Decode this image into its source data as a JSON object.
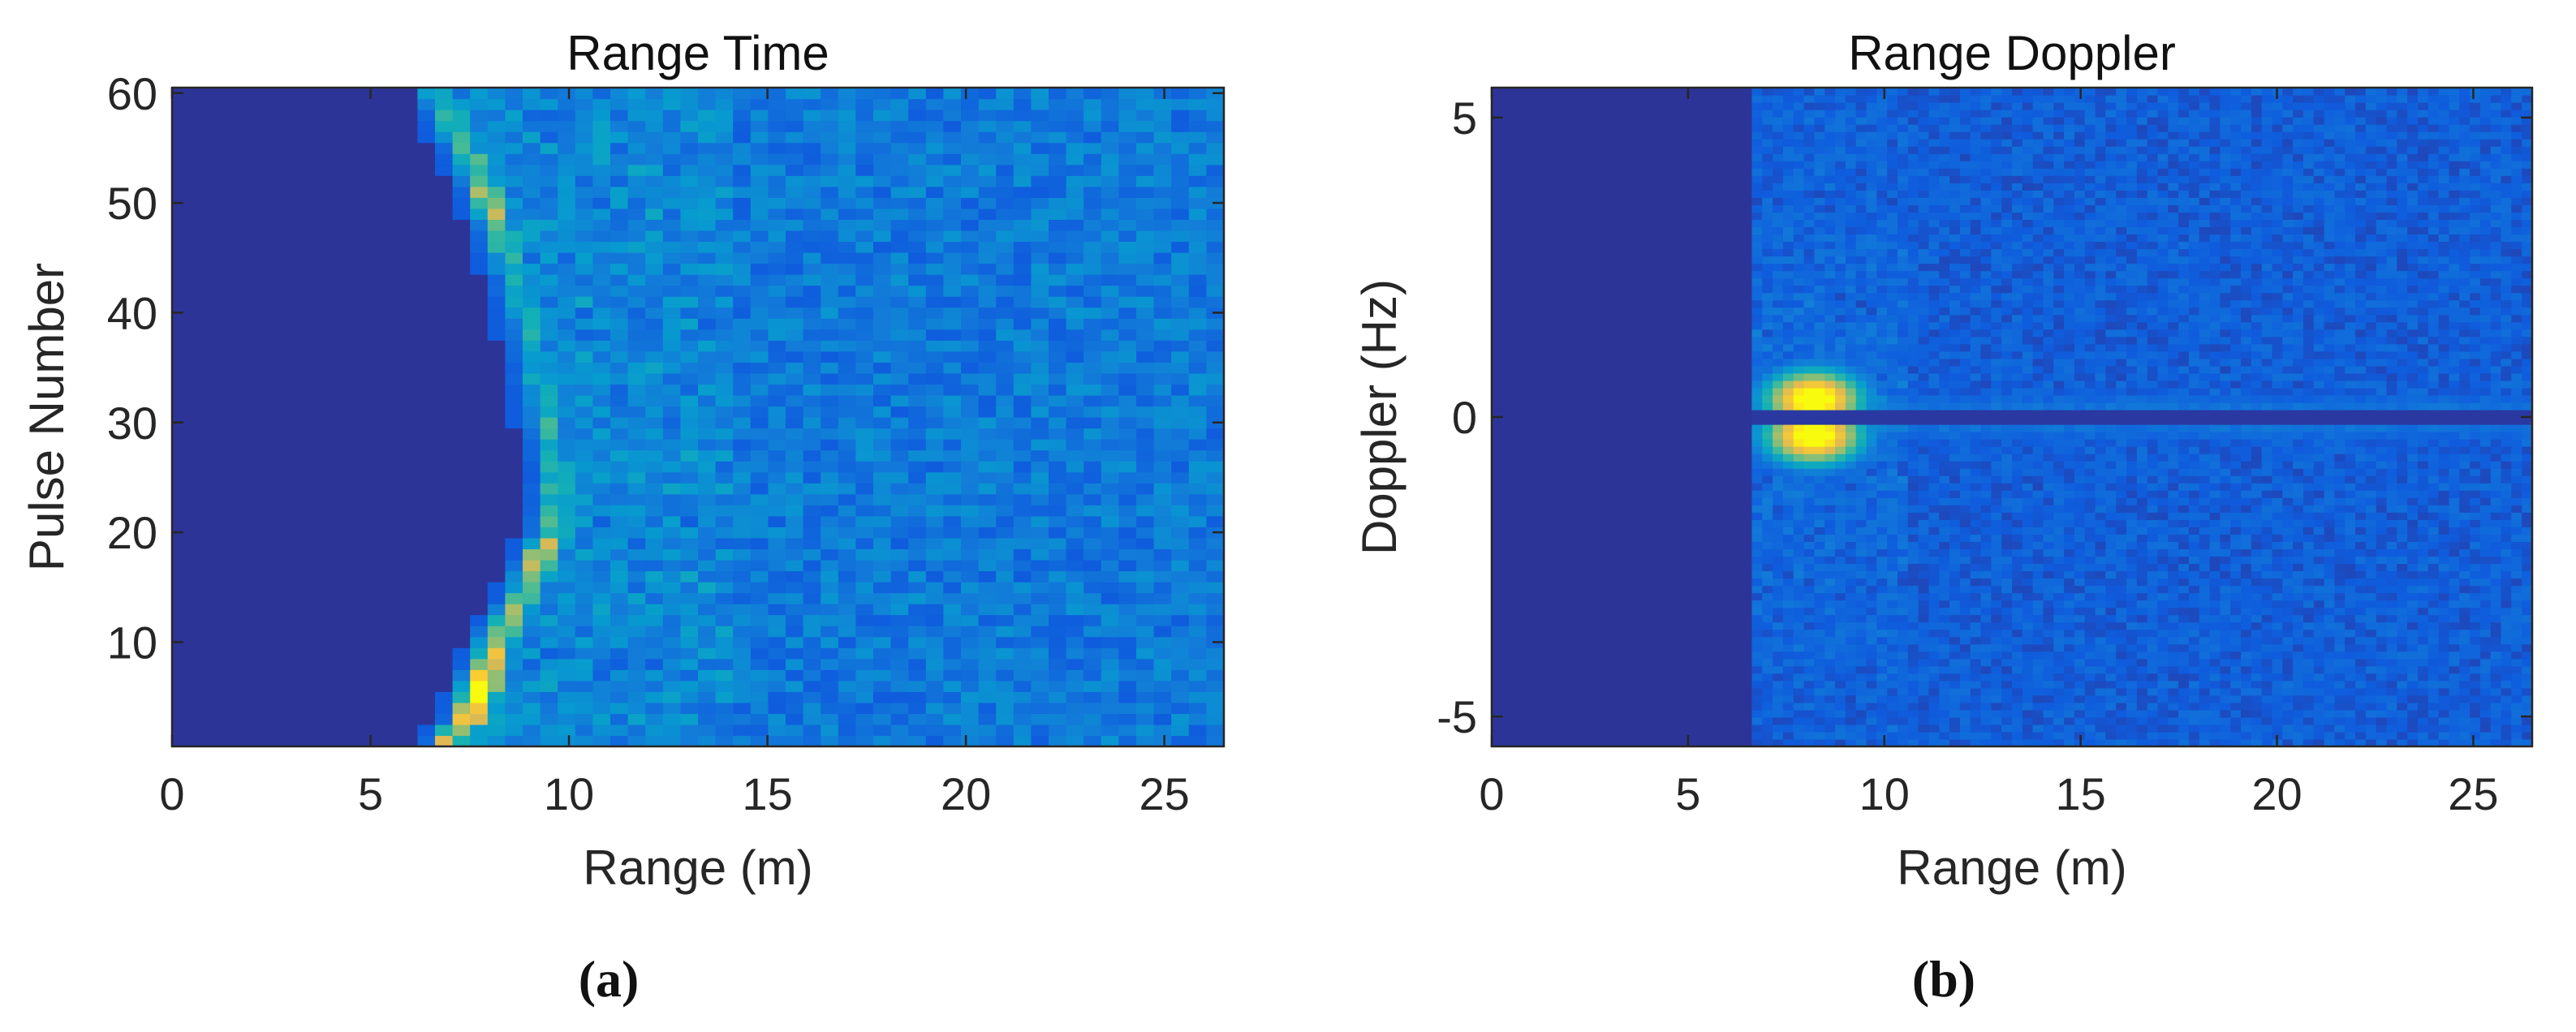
{
  "figure": {
    "panel_labels": [
      "(a)",
      "(b)"
    ]
  },
  "chart_data": [
    {
      "type": "heatmap",
      "title": "Range Time",
      "xlabel": "Range (m)",
      "ylabel": "Pulse Number",
      "xlim": [
        0,
        26.5
      ],
      "ylim": [
        0.5,
        60.5
      ],
      "xticks": [
        "0",
        "5",
        "10",
        "15",
        "20",
        "25"
      ],
      "xtick_values": [
        0,
        5,
        10,
        15,
        20,
        25
      ],
      "yticks": [
        "10",
        "20",
        "30",
        "40",
        "50",
        "60"
      ],
      "ytick_values": [
        10,
        20,
        30,
        40,
        50,
        60
      ],
      "colormap": "parula",
      "grid": false,
      "target_track": {
        "description": "bright target return; range (m) per pulse number",
        "pulse": [
          1,
          3,
          6,
          8,
          11,
          13,
          16,
          18,
          20,
          25,
          30,
          35,
          40,
          45,
          48,
          51,
          55,
          58,
          60
        ],
        "range_m": [
          7.0,
          7.5,
          7.8,
          8.0,
          8.3,
          8.7,
          9.1,
          9.3,
          9.6,
          9.7,
          9.5,
          9.2,
          8.9,
          8.5,
          8.2,
          7.9,
          7.4,
          7.0,
          6.6
        ],
        "intensity": [
          0.7,
          0.85,
          0.95,
          0.8,
          0.65,
          0.6,
          0.6,
          0.7,
          0.55,
          0.45,
          0.45,
          0.4,
          0.4,
          0.45,
          0.6,
          0.65,
          0.5,
          0.5,
          0.45
        ]
      },
      "noise_onset_range_m": 6.3
    },
    {
      "type": "heatmap",
      "title": "Range Doppler",
      "xlabel": "Range (m)",
      "ylabel": "Doppler (Hz)",
      "xlim": [
        0,
        26.5
      ],
      "ylim": [
        -5.5,
        5.5
      ],
      "xticks": [
        "0",
        "5",
        "10",
        "15",
        "20",
        "25"
      ],
      "xtick_values": [
        0,
        5,
        10,
        15,
        20,
        25
      ],
      "yticks": [
        "-5",
        "0",
        "5"
      ],
      "ytick_values": [
        -5,
        0,
        5
      ],
      "colormap": "parula",
      "grid": false,
      "peak": {
        "range_m": 8.2,
        "doppler_hz": [
          0.3,
          -0.3
        ],
        "intensity": 1.0
      },
      "zero_doppler_notch_hz": 0,
      "noise_onset_range_m": 6.5
    }
  ]
}
